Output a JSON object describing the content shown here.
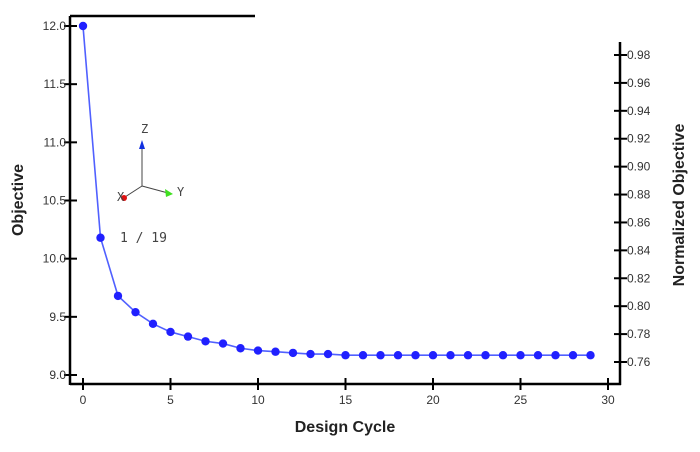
{
  "chart_data": {
    "type": "line",
    "xlabel": "Design Cycle",
    "ylabel": "Objective",
    "y2label": "Normalized Objective",
    "xlim": [
      0,
      30
    ],
    "ylim": [
      9.0,
      12.0
    ],
    "y2lim": [
      0.76,
      0.98
    ],
    "xticks": [
      "0",
      "5",
      "10",
      "15",
      "20",
      "25",
      "30"
    ],
    "yticks": [
      "9.0",
      "9.5",
      "10.0",
      "10.5",
      "11.0",
      "11.5",
      "12.0"
    ],
    "y2ticks": [
      "0.76",
      "0.78",
      "0.80",
      "0.82",
      "0.84",
      "0.86",
      "0.88",
      "0.90",
      "0.92",
      "0.94",
      "0.96",
      "0.98"
    ],
    "grid": false,
    "series": [
      {
        "color": "#2020ff",
        "x": [
          0,
          1,
          2,
          3,
          4,
          5,
          6,
          7,
          8,
          9,
          10,
          11,
          12,
          13,
          14,
          15,
          16,
          17,
          18,
          19,
          20,
          21,
          22,
          23,
          24,
          25,
          26,
          27,
          28,
          29
        ],
        "y": [
          12.0,
          10.18,
          9.68,
          9.54,
          9.44,
          9.37,
          9.33,
          9.29,
          9.27,
          9.23,
          9.21,
          9.2,
          9.19,
          9.18,
          9.18,
          9.17,
          9.17,
          9.17,
          9.17,
          9.17,
          9.17,
          9.17,
          9.17,
          9.17,
          9.17,
          9.17,
          9.17,
          9.17,
          9.17,
          9.17
        ]
      }
    ]
  },
  "overlay": {
    "triad": {
      "x_label": "X",
      "y_label": "Y",
      "z_label": "Z",
      "x_color": "#e01010",
      "y_color": "#40e020",
      "z_color": "#1030e0"
    },
    "frame_counter": "1 / 19"
  }
}
